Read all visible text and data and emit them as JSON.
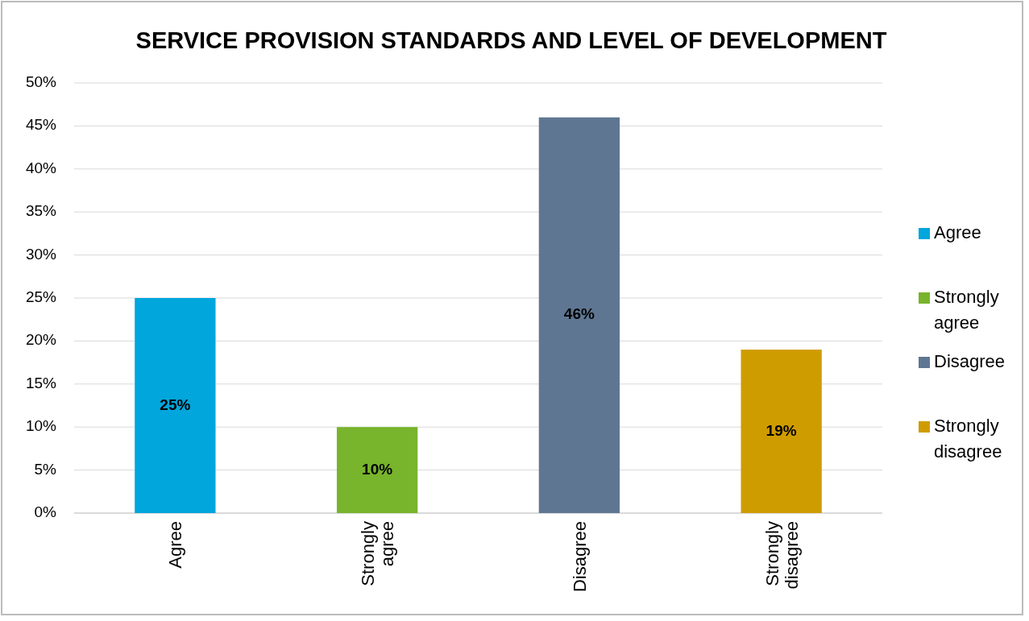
{
  "chart_data": {
    "type": "bar",
    "title": "SERVICE PROVISION STANDARDS AND LEVEL OF DEVELOPMENT",
    "categories": [
      "Agree",
      "Strongly agree",
      "Disagree",
      "Strongly disagree"
    ],
    "series": [
      {
        "name": "Agree",
        "color": "#00a6dc",
        "values": [
          25,
          null,
          null,
          null
        ],
        "value_labels": [
          "25%",
          null,
          null,
          null
        ]
      },
      {
        "name": "Strongly agree",
        "color": "#78b42c",
        "values": [
          null,
          10,
          null,
          null
        ],
        "value_labels": [
          null,
          "10%",
          null,
          null
        ]
      },
      {
        "name": "Disagree",
        "color": "#5f7693",
        "values": [
          null,
          null,
          46,
          null
        ],
        "value_labels": [
          null,
          null,
          "46%",
          null
        ]
      },
      {
        "name": "Strongly disagree",
        "color": "#cf9c00",
        "values": [
          null,
          null,
          null,
          19
        ],
        "value_labels": [
          null,
          null,
          null,
          "19%"
        ]
      }
    ],
    "ylim": [
      0,
      50
    ],
    "yticks": [
      {
        "value": 0,
        "label": "0%"
      },
      {
        "value": 5,
        "label": "5%"
      },
      {
        "value": 10,
        "label": "10%"
      },
      {
        "value": 15,
        "label": "15%"
      },
      {
        "value": 20,
        "label": "20%"
      },
      {
        "value": 25,
        "label": "25%"
      },
      {
        "value": 30,
        "label": "30%"
      },
      {
        "value": 35,
        "label": "35%"
      },
      {
        "value": 40,
        "label": "40%"
      },
      {
        "value": 45,
        "label": "45%"
      },
      {
        "value": 50,
        "label": "50%"
      }
    ],
    "grid": "y",
    "legend": "right"
  }
}
